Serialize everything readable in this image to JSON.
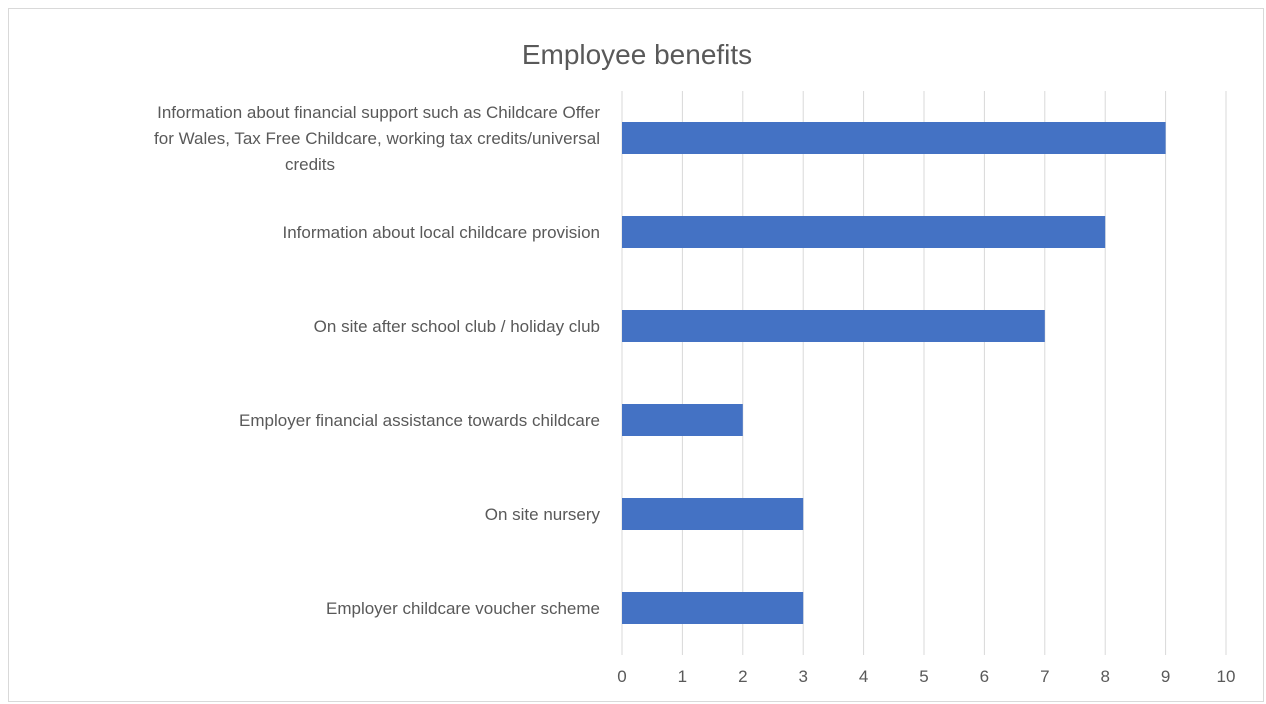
{
  "chart_data": {
    "type": "bar",
    "orientation": "horizontal",
    "title": "Employee benefits",
    "xlabel": "",
    "ylabel": "",
    "xlim": [
      0,
      10
    ],
    "ticks": [
      "0",
      "1",
      "2",
      "3",
      "4",
      "5",
      "6",
      "7",
      "8",
      "9",
      "10"
    ],
    "grid": true,
    "legend": "none",
    "bar_color": "#4472C4",
    "categories": [
      {
        "label": "Information about financial support such as Childcare Offer for Wales, Tax Free Childcare, working tax credits/universal credits",
        "lines": [
          "Information about financial support such as Childcare Offer",
          "for Wales, Tax Free Childcare, working tax credits/universal",
          "credits"
        ],
        "value": 9
      },
      {
        "label": "Information about local childcare provision",
        "lines": [
          "Information about local childcare provision"
        ],
        "value": 8
      },
      {
        "label": "On site after school club / holiday club",
        "lines": [
          "On site after school club / holiday club"
        ],
        "value": 7
      },
      {
        "label": "Employer financial assistance towards childcare",
        "lines": [
          "Employer financial assistance towards childcare"
        ],
        "value": 2
      },
      {
        "label": "On site nursery",
        "lines": [
          "On site nursery"
        ],
        "value": 3
      },
      {
        "label": "Employer childcare voucher scheme",
        "lines": [
          "Employer childcare voucher scheme"
        ],
        "value": 3
      }
    ]
  }
}
